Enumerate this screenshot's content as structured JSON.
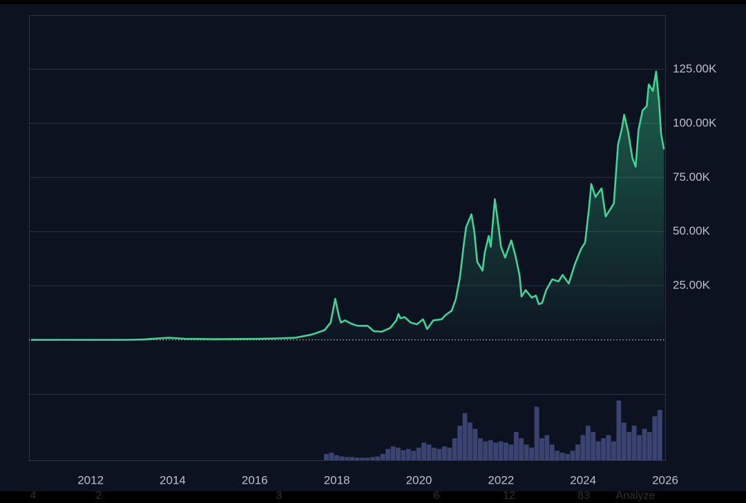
{
  "chart_data": {
    "type": "line",
    "xlim": [
      2010.5,
      2026
    ],
    "xticks": [
      2012,
      2014,
      2016,
      2018,
      2020,
      2022,
      2024,
      2026
    ],
    "ylim": [
      -25000,
      150000
    ],
    "yticks": [
      {
        "value": 25000,
        "label": "25.00K"
      },
      {
        "value": 50000,
        "label": "50.00K"
      },
      {
        "value": 75000,
        "label": "75.00K"
      },
      {
        "value": 100000,
        "label": "100.00K"
      },
      {
        "value": 125000,
        "label": "125.00K"
      }
    ],
    "grid": true,
    "series": [
      {
        "color": "#3ed596",
        "x": [
          2010.55,
          2011.4,
          2012,
          2013,
          2013.3,
          2013.9,
          2014.3,
          2015,
          2016,
          2016.5,
          2017,
          2017.4,
          2017.7,
          2017.85,
          2017.96,
          2018.05,
          2018.1,
          2018.2,
          2018.35,
          2018.5,
          2018.75,
          2018.9,
          2019.1,
          2019.3,
          2019.45,
          2019.5,
          2019.55,
          2019.65,
          2019.8,
          2019.95,
          2020.1,
          2020.2,
          2020.35,
          2020.55,
          2020.65,
          2020.8,
          2020.9,
          2021,
          2021.1,
          2021.15,
          2021.28,
          2021.35,
          2021.42,
          2021.55,
          2021.6,
          2021.7,
          2021.75,
          2021.85,
          2021.9,
          2022,
          2022.1,
          2022.25,
          2022.35,
          2022.45,
          2022.5,
          2022.6,
          2022.75,
          2022.85,
          2022.92,
          2023,
          2023.1,
          2023.25,
          2023.4,
          2023.5,
          2023.65,
          2023.8,
          2023.95,
          2024.05,
          2024.15,
          2024.2,
          2024.3,
          2024.45,
          2024.55,
          2024.65,
          2024.75,
          2024.85,
          2024.95,
          2025.0,
          2025.1,
          2025.2,
          2025.28,
          2025.35,
          2025.45,
          2025.55,
          2025.6,
          2025.7,
          2025.78,
          2025.85,
          2025.9,
          2025.97
        ],
        "values": [
          0.1,
          15,
          5,
          13,
          200,
          1000,
          500,
          300,
          430,
          650,
          1000,
          2500,
          4500,
          8000,
          19000,
          11000,
          8000,
          9000,
          7500,
          6500,
          6500,
          4000,
          3800,
          5500,
          9000,
          12000,
          10000,
          10500,
          8000,
          7200,
          9500,
          5000,
          9000,
          9500,
          11500,
          13500,
          19000,
          29000,
          45000,
          52000,
          58000,
          50000,
          36000,
          32000,
          40000,
          48000,
          43000,
          65000,
          58000,
          43000,
          38000,
          46000,
          39000,
          30000,
          20000,
          23000,
          19500,
          20500,
          16500,
          17000,
          23000,
          28000,
          27000,
          30000,
          26000,
          35000,
          42000,
          45000,
          62000,
          72000,
          66000,
          70000,
          57000,
          60000,
          63000,
          90000,
          98000,
          104000,
          96000,
          84000,
          80000,
          97000,
          106000,
          108000,
          118000,
          115000,
          124000,
          110000,
          95000,
          88000
        ]
      }
    ],
    "volume": {
      "color": "#3b4470",
      "vlim": [
        0,
        100
      ],
      "x": [
        2017.75,
        2017.875,
        2018,
        2018.125,
        2018.25,
        2018.375,
        2018.5,
        2018.625,
        2018.75,
        2018.875,
        2019,
        2019.125,
        2019.25,
        2019.375,
        2019.5,
        2019.625,
        2019.75,
        2019.875,
        2020,
        2020.125,
        2020.25,
        2020.375,
        2020.5,
        2020.625,
        2020.75,
        2020.875,
        2021,
        2021.125,
        2021.25,
        2021.375,
        2021.5,
        2021.625,
        2021.75,
        2021.875,
        2022,
        2022.125,
        2022.25,
        2022.375,
        2022.5,
        2022.625,
        2022.75,
        2022.875,
        2023,
        2023.125,
        2023.25,
        2023.375,
        2023.5,
        2023.625,
        2023.75,
        2023.875,
        2024,
        2024.125,
        2024.25,
        2024.375,
        2024.5,
        2024.625,
        2024.75,
        2024.875,
        2025,
        2025.125,
        2025.25,
        2025.375,
        2025.5,
        2025.625,
        2025.75,
        2025.875
      ],
      "values": [
        10,
        12,
        8,
        6,
        5,
        5,
        4,
        4,
        4,
        5,
        6,
        10,
        18,
        22,
        20,
        16,
        18,
        15,
        20,
        28,
        25,
        20,
        18,
        22,
        20,
        35,
        55,
        75,
        60,
        50,
        35,
        30,
        32,
        28,
        30,
        28,
        25,
        45,
        35,
        25,
        20,
        85,
        35,
        40,
        25,
        15,
        12,
        10,
        15,
        25,
        40,
        55,
        45,
        30,
        35,
        40,
        30,
        95,
        60,
        45,
        55,
        40,
        50,
        45,
        70,
        80
      ]
    },
    "footer_labels": [
      "4",
      "2",
      "3",
      "6",
      "12",
      "83",
      "Analyze"
    ]
  }
}
